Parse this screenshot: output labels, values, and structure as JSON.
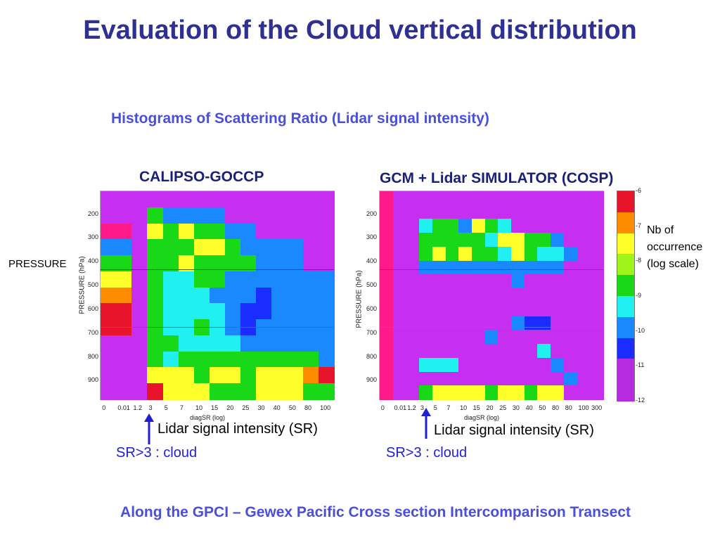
{
  "slide": {
    "title": "Evaluation of the Cloud vertical distribution",
    "subtitle": "Histograms of Scattering Ratio (Lidar signal intensity)",
    "pressure_label": "PRESSURE",
    "footer": "Along the GPCI – Gewex Pacific Cross section Intercomparison Transect",
    "legend_note": [
      "Nb of",
      "occurrence",
      "(log scale)"
    ]
  },
  "chart_data": [
    {
      "type": "heatmap",
      "title": "CALIPSO-GOCCP",
      "xlabel": "diagSR (log)",
      "ylabel": "PRESSURE (hPa)",
      "x_tick_labels": [
        "0",
        "0.01",
        "1.2",
        "3",
        "5",
        "7",
        "10",
        "15",
        "20",
        "25",
        "30",
        "40",
        "50",
        "80",
        "100"
      ],
      "y_tick_labels": [
        "200",
        "300",
        "400",
        "500",
        "600",
        "700",
        "800",
        "900"
      ],
      "annotation_x_label": "Lidar signal intensity (SR)",
      "annotation_threshold": "SR>3 : cloud",
      "grid": [
        "PPPPPPPPPPPPPPP",
        "PPPGBBBBPPPPPPP",
        "SSPYGYGGBBPPPPP",
        "BBPGGGYYGBBBBPP",
        "GGPGGYGGGGBBBPP",
        "YYPGCCGGBBBBBBB",
        "OOPGCCCBBBKBBBB",
        "RRPGCCCCBKKBBBB",
        "RRPGCCGCBKBBBBB",
        "PPPGGCCCCBBBBBB",
        "PPPGCGGGGGGGGGB",
        "PPPYYYGYYGYYYOR",
        "PPPRYYYGGGYYYGG"
      ]
    },
    {
      "type": "heatmap",
      "title": "GCM + Lidar SIMULATOR (COSP)",
      "xlabel": "diagSR (log)",
      "ylabel": "PRESSURE (hPa)",
      "x_tick_labels": [
        "0",
        "0.01",
        "1.2",
        "3",
        "5",
        "7",
        "10",
        "15",
        "20",
        "25",
        "30",
        "40",
        "50",
        "80",
        "80",
        "100",
        "300"
      ],
      "y_tick_labels": [
        "200",
        "300",
        "400",
        "500",
        "600",
        "700",
        "800",
        "900"
      ],
      "annotation_x_label": "Lidar signal intensity (SR)",
      "annotation_threshold": "SR>3 : cloud",
      "grid": [
        "SPPPPPPPPPPPPPPPP",
        "SPPPPPPPPPPPPPPPP",
        "SPPCGGBYGCPPPPPPP",
        "SPPGGGGGCYYGGBPPP",
        "SPPGYGYGGCYGCCBPP",
        "SPPBBBBBBBBBBBPPP",
        "SPPPPPPPPPBPPPPPP",
        "SPPPPPPPPPPPPPPPP",
        "SPPPPPPPPPPPPPPPP",
        "SPPPPPPPPPBKKPPPP",
        "SPPPPPPPBPPPPPPPP",
        "SPPPPPPPPPPPCPPPP",
        "SPPCCCPPPPPPPBPPP",
        "SPPPPPPPPPPPPPBPP",
        "SPPGYYYYGYYGYYPPP"
      ]
    }
  ],
  "colorbar": {
    "tick_labels": [
      "-6",
      "-7",
      "-8",
      "-9",
      "-10",
      "-11",
      "-12"
    ],
    "colors": [
      "#e8142c",
      "#ff8c00",
      "#ffff2a",
      "#9ff51a",
      "#18d818",
      "#20f0f0",
      "#1a88ff",
      "#1a2cff",
      "#b82ae0",
      "#b82ae0"
    ]
  },
  "palette": {
    "P": "#c62ef0",
    "S": "#ff1a8c",
    "G": "#18d818",
    "B": "#1a88ff",
    "K": "#1a2cff",
    "C": "#20f0f0",
    "Y": "#ffff2a",
    "O": "#ff8c00",
    "R": "#e8142c"
  },
  "accent_colors": {
    "title": "#2e3192",
    "subtitle": "#4a4fd8",
    "arrow": "#1f1fd6"
  }
}
